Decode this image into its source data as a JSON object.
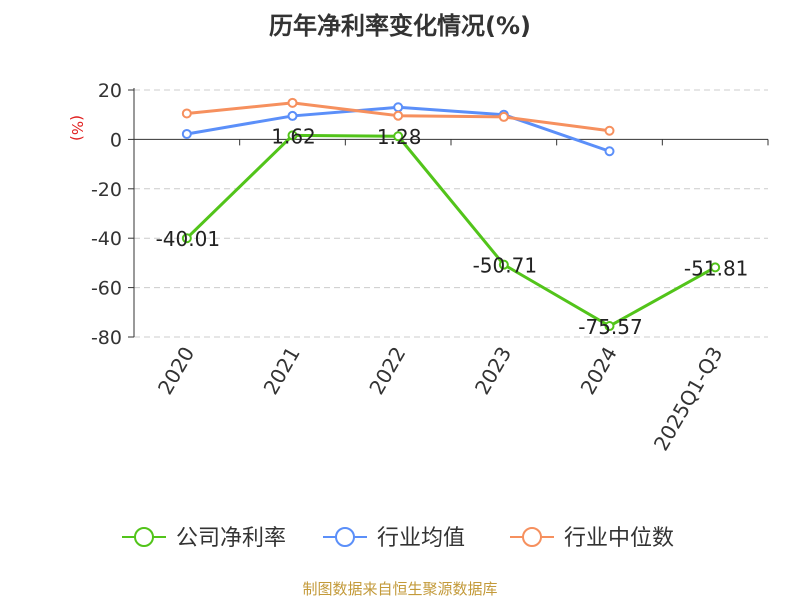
{
  "chart_data": {
    "type": "line",
    "title": "历年净利率变化情况(%)",
    "ylabel": "(%)",
    "categories": [
      "2020",
      "2021",
      "2022",
      "2023",
      "2024",
      "2025Q1-Q3"
    ],
    "y_ticks": [
      "20",
      "0",
      "-20",
      "-40",
      "-60",
      "-80"
    ],
    "ylim": [
      -80,
      20
    ],
    "grid": "horizontal dashed",
    "legend_position": "bottom",
    "series": [
      {
        "name": "公司净利率",
        "color": "#52c41a",
        "values": [
          -40.01,
          1.62,
          1.28,
          -50.71,
          -75.57,
          -51.81
        ],
        "labels": [
          "-40.01",
          "1.62",
          "1.28",
          "-50.71",
          "-75.57",
          "-51.81"
        ]
      },
      {
        "name": "行业均值",
        "color": "#5b8ff9",
        "values": [
          2.2,
          9.5,
          13.0,
          10.0,
          -4.8,
          null
        ]
      },
      {
        "name": "行业中位数",
        "color": "#f6905e",
        "values": [
          10.5,
          14.8,
          9.6,
          9.1,
          3.5,
          null
        ]
      }
    ]
  },
  "footer": "制图数据来自恒生聚源数据库"
}
